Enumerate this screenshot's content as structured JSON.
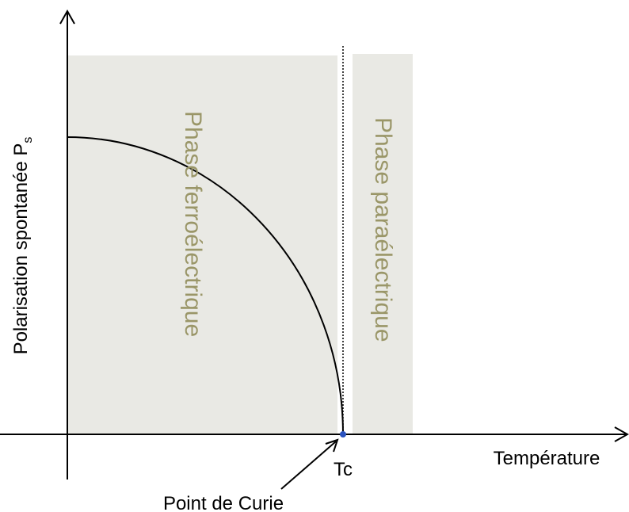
{
  "axes": {
    "y_label": "Polarisation spontanée P",
    "y_label_subscript": "s",
    "x_label": "Température"
  },
  "regions": [
    {
      "label": "Phase ferroélectrique"
    },
    {
      "label": "Phase paraélectrique"
    }
  ],
  "markers": {
    "tc": "Tc",
    "curie_point": "Point de Curie"
  }
}
